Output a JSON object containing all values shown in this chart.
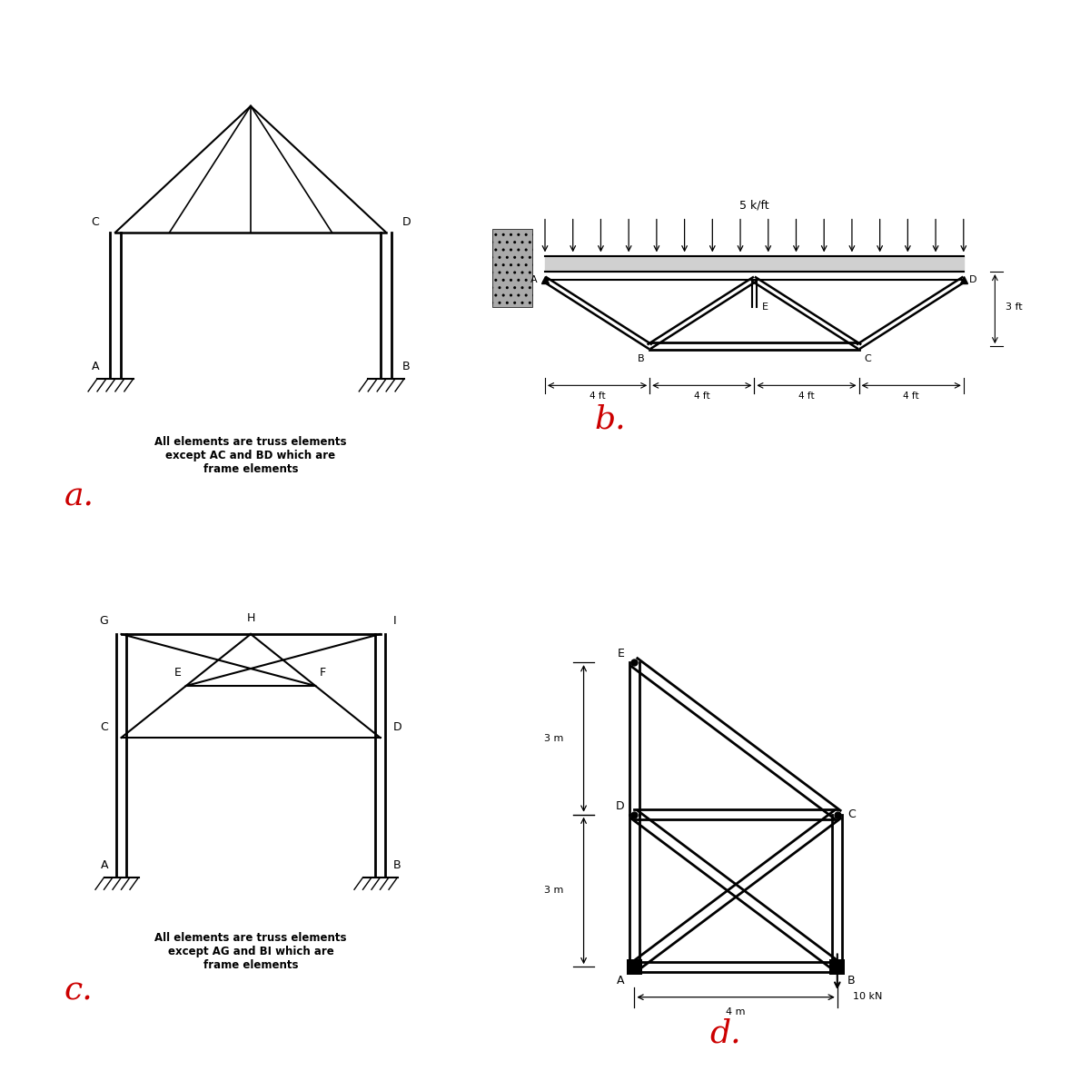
{
  "bg_color": "#ffffff",
  "label_a": "a.",
  "label_b": "b.",
  "label_c": "c.",
  "label_d": "d.",
  "label_color": "#cc0000",
  "text_color": "#000000",
  "caption_a": "All elements are truss elements\nexcept AC and BD which are\nframe elements",
  "caption_c": "All elements are truss elements\nexcept AG and BI which are\nframe elements"
}
